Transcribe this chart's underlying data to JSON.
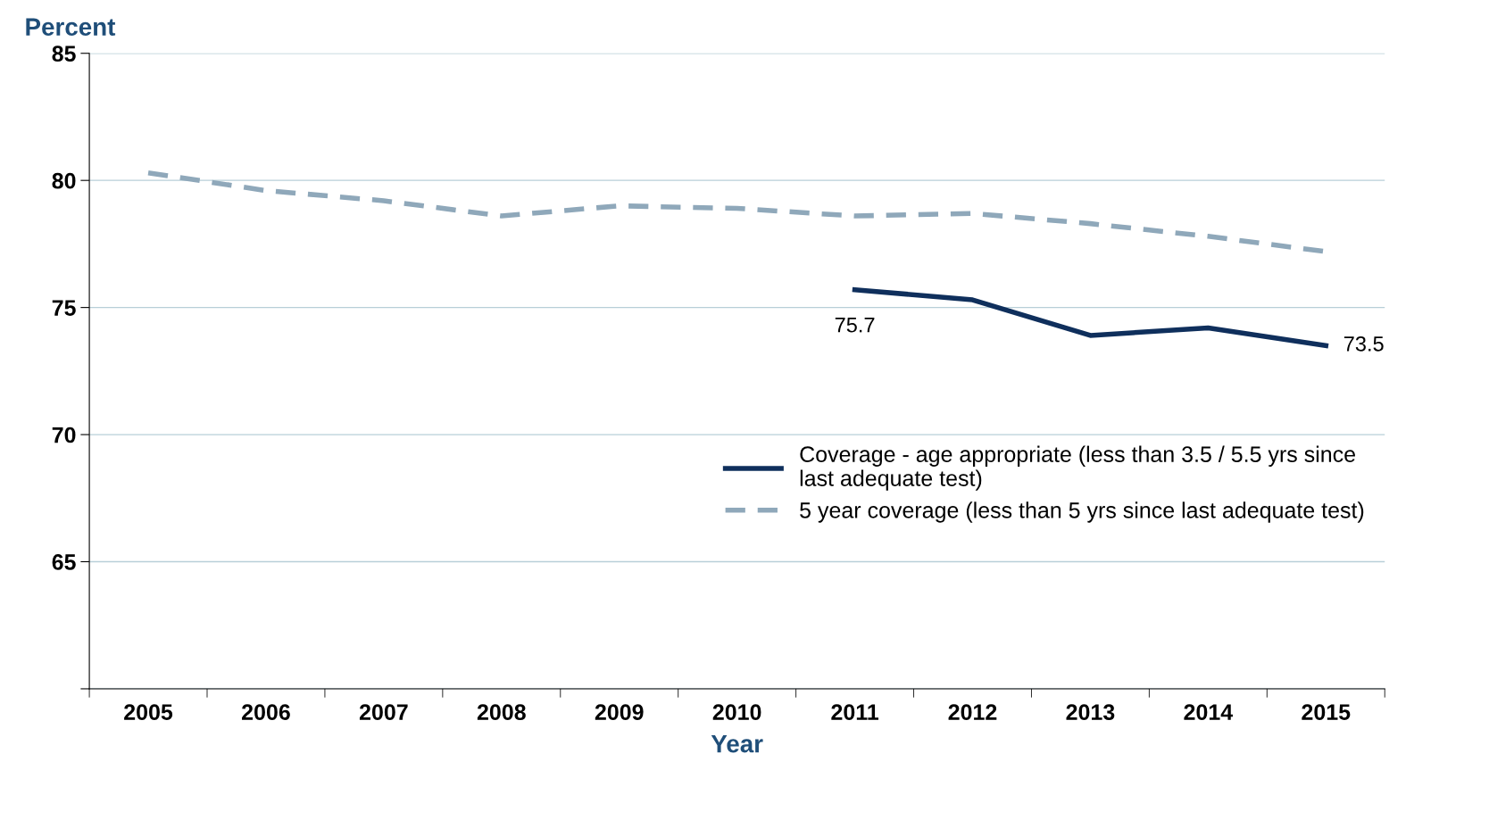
{
  "chart_data": {
    "type": "line",
    "ylabel": "Percent",
    "xlabel": "Year",
    "categories": [
      "2005",
      "2006",
      "2007",
      "2008",
      "2009",
      "2010",
      "2011",
      "2012",
      "2013",
      "2014",
      "2015"
    ],
    "series": [
      {
        "name": "Coverage - age appropriate (less than 3.5 / 5.5 yrs since\nlast adequate test)",
        "color": "#0f2f5c",
        "line_style": "solid",
        "values": [
          null,
          null,
          null,
          null,
          null,
          null,
          75.7,
          75.3,
          73.9,
          74.2,
          73.5
        ],
        "value_labels": [
          null,
          null,
          null,
          null,
          null,
          null,
          "75.7",
          null,
          null,
          null,
          "73.5"
        ]
      },
      {
        "name": "5 year coverage (less than 5 yrs since last adequate test)",
        "color": "#8fa8ba",
        "line_style": "dashed",
        "values": [
          80.3,
          79.6,
          79.2,
          78.6,
          79.0,
          78.9,
          78.6,
          78.7,
          78.3,
          77.8,
          77.2
        ]
      }
    ],
    "ylim": [
      60,
      85
    ],
    "yticks": [
      {
        "value": 60,
        "label": null
      },
      65,
      70,
      75,
      80,
      85
    ],
    "grid": "y",
    "legend": "bottom right",
    "marker": "none"
  }
}
